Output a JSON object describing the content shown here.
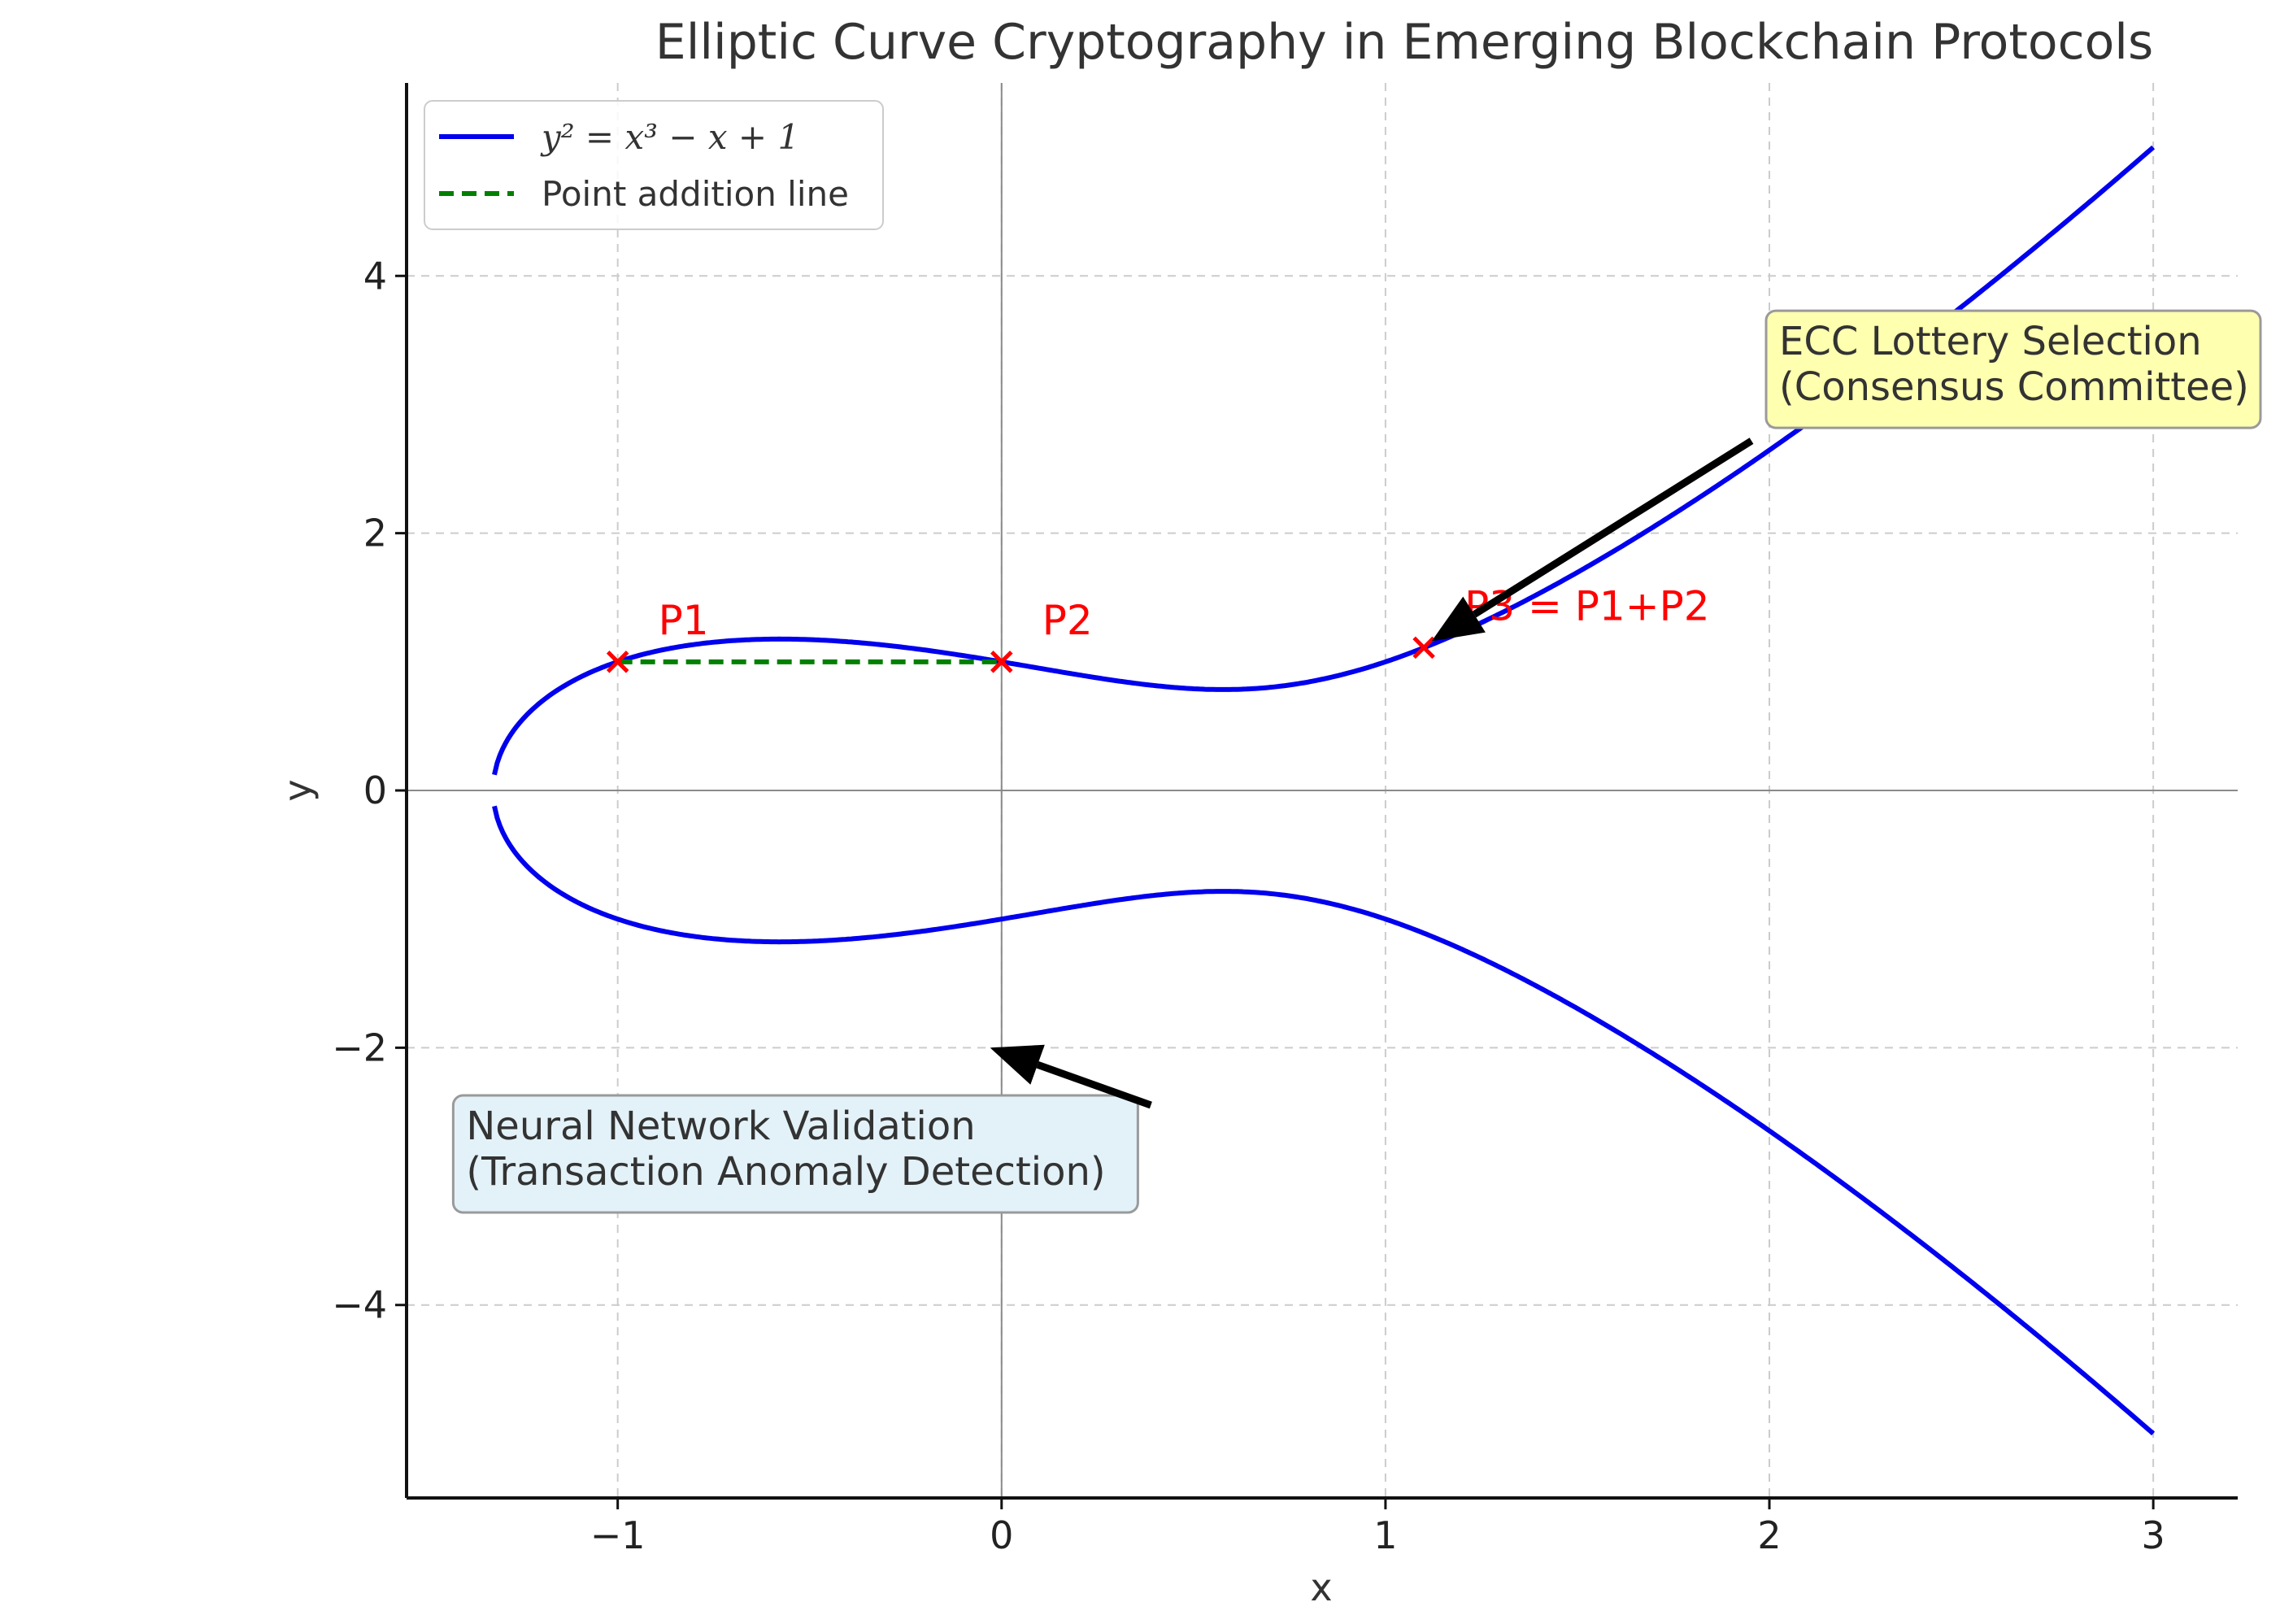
{
  "chart_data": {
    "type": "line",
    "title": "Elliptic Curve Cryptography in Emerging Blockchain Protocols",
    "xlabel": "x",
    "ylabel": "y",
    "xlim": [
      -1.55,
      3.22
    ],
    "ylim": [
      -5.5,
      5.5
    ],
    "xticks": [
      -1,
      0,
      1,
      2,
      3
    ],
    "yticks": [
      -4,
      -2,
      0,
      2,
      4
    ],
    "xtick_labels": [
      "−1",
      "0",
      "1",
      "2",
      "3"
    ],
    "ytick_labels": [
      "−4",
      "−2",
      "0",
      "2",
      "4"
    ],
    "grid": true,
    "legend_placement": "top-left",
    "colors": {
      "curve": "#0000ee",
      "addition_line": "#008000",
      "points": "#ff0000",
      "arrow": "#000000",
      "box_yellow": "#ffffb0",
      "box_blue": "#e3f2f8"
    },
    "curve": {
      "equation": "y^2 = x^3 - x + 1",
      "legend_label": "y² = x³ − x + 1",
      "x_min": -1.3247,
      "x_max": 3
    },
    "addition_line": {
      "legend_label": "Point addition line",
      "x": [
        -1,
        0
      ],
      "y": [
        1,
        1
      ]
    },
    "points": [
      {
        "label": "P1",
        "x": -1,
        "y": 1
      },
      {
        "label": "P2",
        "x": 0,
        "y": 1
      },
      {
        "label": "P3 = P1+P2",
        "x": 1.1,
        "y": 1.11
      }
    ],
    "annotations": [
      {
        "lines": [
          "ECC Lottery Selection",
          "(Consensus Committee)"
        ],
        "text_x": 2.0,
        "text_y": 3.35,
        "target_x": 1.12,
        "target_y": 1.16,
        "style": "yellow"
      },
      {
        "lines": [
          "Neural Network Validation",
          "(Transaction Anomaly Detection)"
        ],
        "text_x": -1.42,
        "text_y": -2.75,
        "target_x": -0.03,
        "target_y": -2.0,
        "style": "blue"
      }
    ]
  }
}
